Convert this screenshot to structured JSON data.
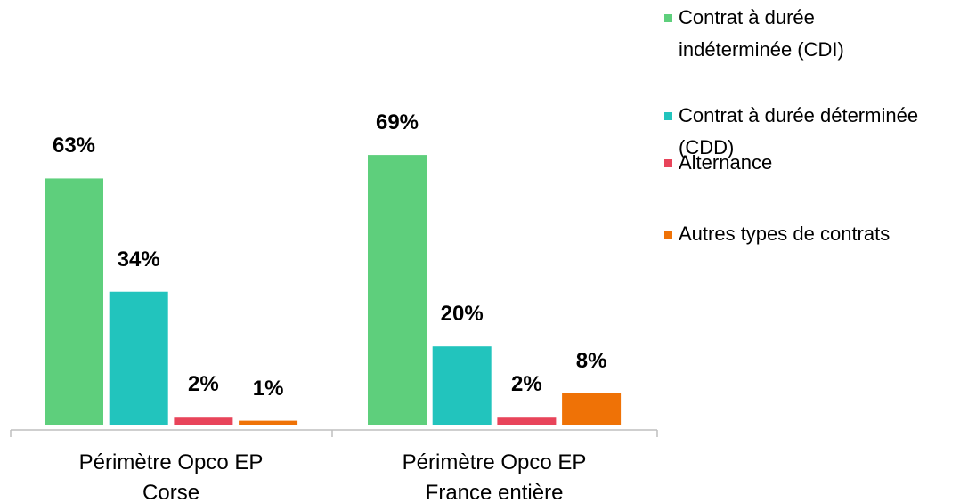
{
  "chart_data": {
    "type": "bar",
    "categories": [
      "Périmètre Opco EP Corse",
      "Périmètre Opco EP France entière"
    ],
    "series": [
      {
        "name": "Contrat à durée indéterminée (CDI)",
        "color": "#5ecf7c",
        "values": [
          63,
          69
        ],
        "value_labels": [
          "63%",
          "69%"
        ]
      },
      {
        "name": "Contrat à durée déterminée (CDD)",
        "color": "#22c4bd",
        "values": [
          34,
          20
        ],
        "value_labels": [
          "34%",
          "20%"
        ]
      },
      {
        "name": "Alternance",
        "color": "#e8445a",
        "values": [
          2,
          2
        ],
        "value_labels": [
          "2%",
          "2%"
        ]
      },
      {
        "name": "Autres types de contrats",
        "color": "#ef7206",
        "values": [
          1,
          8
        ],
        "value_labels": [
          "1%",
          "8%"
        ]
      }
    ],
    "legend": "right"
  }
}
